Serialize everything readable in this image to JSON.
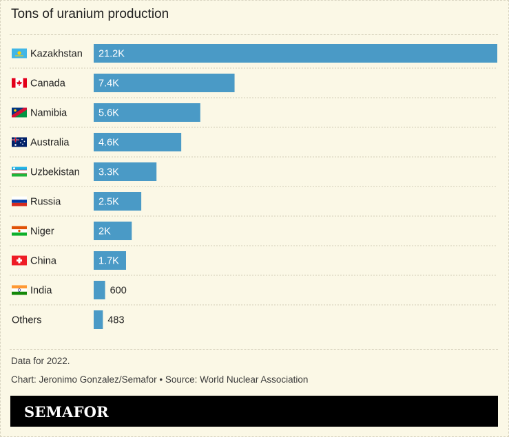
{
  "title": "Tons of uranium production",
  "chart_data": {
    "type": "bar",
    "orientation": "horizontal",
    "categories": [
      "Kazakhstan",
      "Canada",
      "Namibia",
      "Australia",
      "Uzbekistan",
      "Russia",
      "Niger",
      "China",
      "India",
      "Others"
    ],
    "values": [
      21200,
      7400,
      5600,
      4600,
      3300,
      2500,
      2000,
      1700,
      600,
      483
    ],
    "value_labels": [
      "21.2K",
      "7.4K",
      "5.6K",
      "4.6K",
      "3.3K",
      "2.5K",
      "2K",
      "1.7K",
      "600",
      "483"
    ],
    "flags": [
      "kazakhstan-flag",
      "canada-flag",
      "namibia-flag",
      "australia-flag",
      "uzbekistan-flag",
      "russia-flag",
      "niger-flag",
      "china-flag",
      "india-flag",
      null
    ],
    "bar_color": "#4a9ac6",
    "xlim": [
      0,
      21200
    ]
  },
  "notes": {
    "data_note": "Data for 2022.",
    "credit": "Chart: Jeronimo Gonzalez/Semafor • Source: World Nuclear Association"
  },
  "brand": "SEMAFOR"
}
